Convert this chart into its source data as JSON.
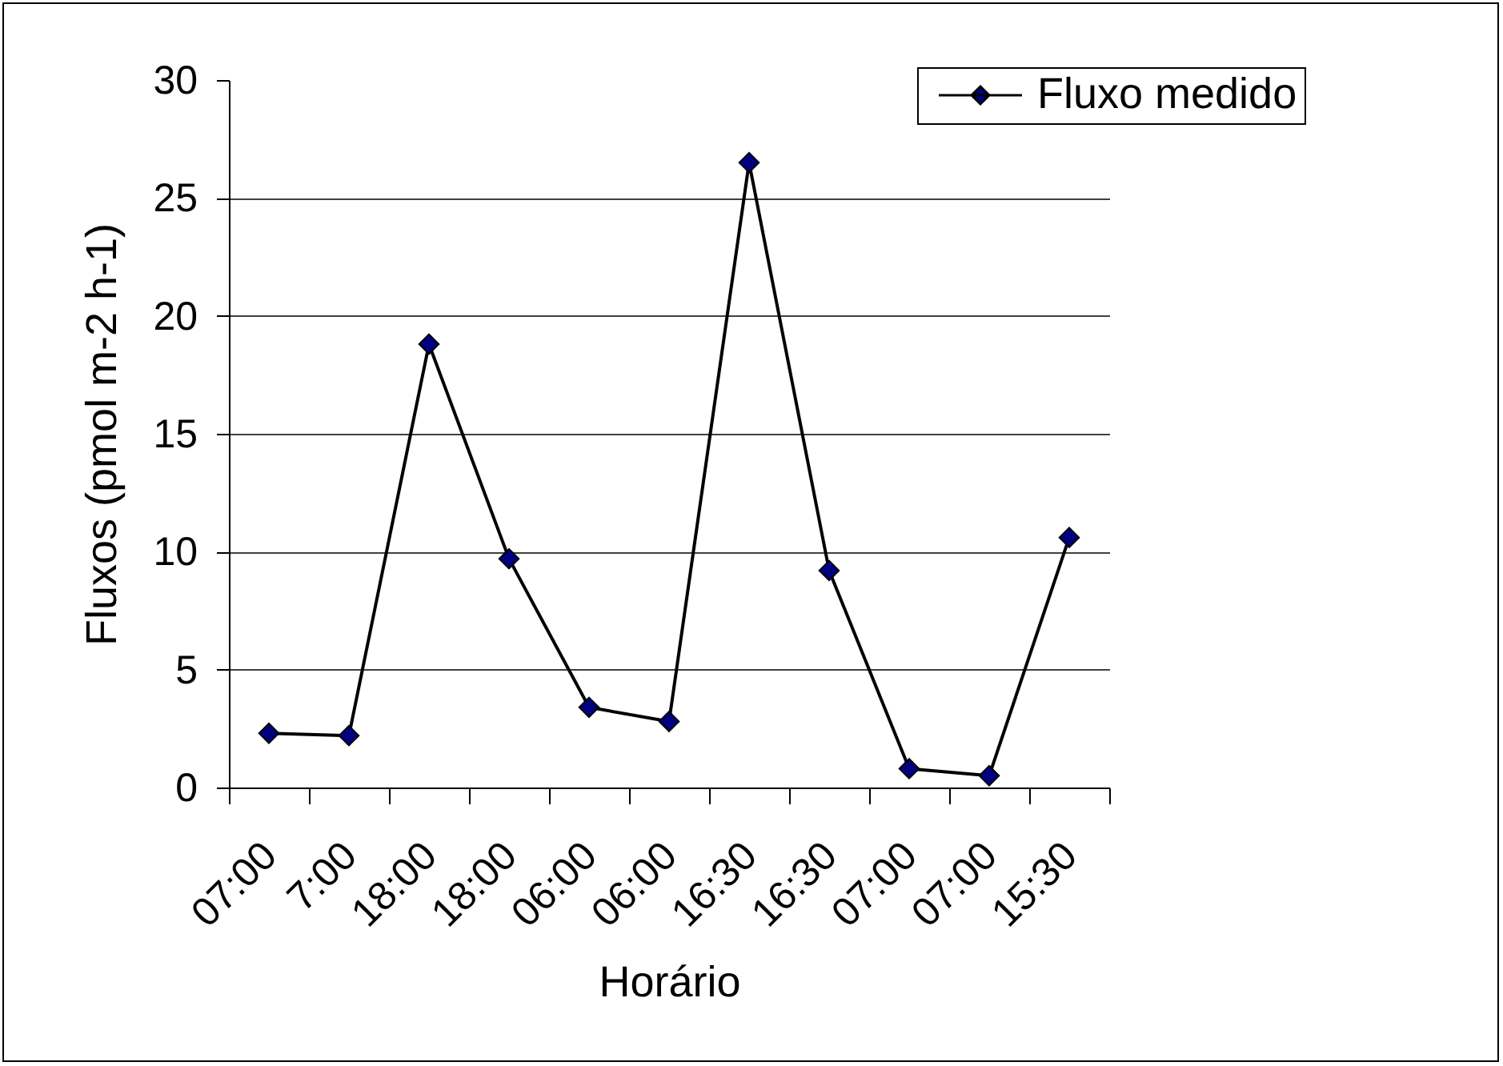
{
  "chart_data": {
    "type": "line",
    "xlabel": "Horário",
    "ylabel": "Fluxos (pmol m-2 h-1)",
    "categories": [
      "07:00",
      "7:00",
      "18:00",
      "18:00",
      "06:00",
      "06:00",
      "16:30",
      "16:30",
      "07:00",
      "07:00",
      "15:30"
    ],
    "series": [
      {
        "name": "Fluxo medido",
        "color": "#000080",
        "values": [
          2.3,
          2.2,
          18.8,
          9.7,
          3.4,
          2.8,
          26.5,
          9.2,
          0.8,
          0.5,
          10.6
        ]
      }
    ],
    "ylim": [
      0,
      30
    ],
    "yticks": [
      0,
      5,
      10,
      15,
      20,
      25,
      30
    ],
    "grid": "y",
    "legend": "top right",
    "marker": "diamond",
    "line_style": "solid"
  }
}
